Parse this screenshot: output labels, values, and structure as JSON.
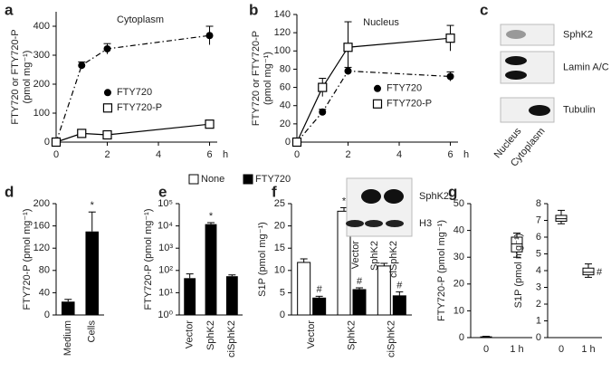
{
  "chart_data": [
    {
      "panel": "a",
      "type": "line",
      "title": "Cytoplasm",
      "ylabel": [
        "FTY720 or FTY720-P",
        "(pmol mg⁻¹)"
      ],
      "xlabel": "h",
      "x": [
        0,
        1,
        2,
        6
      ],
      "xlim": [
        0,
        6.3
      ],
      "xticks": [
        0,
        2,
        4,
        6
      ],
      "ylim": [
        0,
        450
      ],
      "yticks": [
        0,
        100,
        200,
        300,
        400
      ],
      "legend": "center",
      "series": [
        {
          "name": "FTY720",
          "color": "#000000",
          "style": "dashdot",
          "marker": "circle-filled",
          "values": [
            0,
            265,
            322,
            368
          ],
          "errors": [
            null,
            12,
            18,
            32
          ]
        },
        {
          "name": "FTY720-P",
          "color": "#000000",
          "style": "solid",
          "marker": "square-open",
          "values": [
            0,
            30,
            25,
            62
          ],
          "errors": [
            null,
            5,
            4,
            6
          ]
        }
      ]
    },
    {
      "panel": "b",
      "type": "line",
      "title": "Nucleus",
      "ylabel": [
        "FTY720 or FTY720-P",
        "(pmol mg⁻¹)"
      ],
      "xlabel": "h",
      "x": [
        0,
        1,
        2,
        6
      ],
      "xlim": [
        0,
        6.3
      ],
      "xticks": [
        0,
        2,
        4,
        6
      ],
      "ylim": [
        0,
        140
      ],
      "yticks": [
        0,
        20,
        40,
        60,
        80,
        100,
        120,
        140
      ],
      "legend": "center-right",
      "series": [
        {
          "name": "FTY720",
          "color": "#000000",
          "style": "dashdot",
          "marker": "circle-filled",
          "values": [
            0,
            33,
            78,
            72
          ],
          "errors": [
            null,
            3,
            4,
            5
          ]
        },
        {
          "name": "FTY720-P",
          "color": "#000000",
          "style": "solid",
          "marker": "square-open",
          "values": [
            0,
            60,
            104,
            114
          ],
          "errors": [
            null,
            10,
            28,
            14
          ]
        }
      ]
    },
    {
      "panel": "c",
      "type": "blot",
      "rows": [
        "SphK2",
        "Lamin A/C",
        "Tubulin"
      ],
      "lanes": [
        "Nucleus",
        "Cytoplasm"
      ]
    },
    {
      "panel": "d",
      "type": "bar",
      "ylabel": "FTY720-P (pmol mg⁻¹)",
      "categories": [
        "Medium",
        "Cells"
      ],
      "values": [
        24,
        150
      ],
      "errors": [
        4,
        35
      ],
      "color": "#000000",
      "ylim": [
        0,
        200
      ],
      "yticks": [
        0,
        40,
        80,
        120,
        160,
        200
      ],
      "annotations": [
        {
          "text": "*",
          "category": "Cells"
        }
      ]
    },
    {
      "panel": "e",
      "type": "bar",
      "log": true,
      "ylabel": "FTY720-P (pmol mg⁻¹)",
      "categories": [
        "Vector",
        "SphK2",
        "ciSphK2"
      ],
      "values": [
        45,
        12000,
        55
      ],
      "errors": [
        25,
        2000,
        8
      ],
      "color": "#000000",
      "ylim": [
        1,
        100000
      ],
      "yticks": [
        {
          "value": 1,
          "label": "10⁰"
        },
        {
          "value": 10,
          "label": "10¹"
        },
        {
          "value": 100,
          "label": "10²"
        },
        {
          "value": 1000,
          "label": "10³"
        },
        {
          "value": 10000,
          "label": "10⁴"
        },
        {
          "value": 100000,
          "label": "10⁵"
        }
      ],
      "annotations": [
        {
          "text": "*",
          "category": "SphK2"
        }
      ]
    },
    {
      "panel": "f",
      "type": "grouped-bar",
      "ylabel": "S1P (pmol mg⁻¹)",
      "categories": [
        "Vector",
        "SphK2",
        "ciSphK2"
      ],
      "ylim": [
        0,
        25
      ],
      "yticks": [
        0,
        5,
        10,
        15,
        20,
        25
      ],
      "legend": "top",
      "series": [
        {
          "name": "None",
          "color": "#ffffff",
          "values": [
            11.8,
            23.3,
            11
          ],
          "errors": [
            0.8,
            0.8,
            0.6
          ]
        },
        {
          "name": "FTY720",
          "color": "#000000",
          "values": [
            3.8,
            5.7,
            4.3
          ],
          "errors": [
            0.4,
            0.4,
            0.9
          ]
        }
      ],
      "annotations": [
        {
          "text": "*",
          "category": "SphK2",
          "series": "None"
        },
        {
          "text": "#",
          "category": "Vector",
          "series": "FTY720"
        },
        {
          "text": "#",
          "category": "SphK2",
          "series": "FTY720"
        },
        {
          "text": "#",
          "category": "ciSphK2",
          "series": "FTY720"
        }
      ],
      "inset": {
        "rows": [
          "SphK2",
          "H3"
        ],
        "lanes": [
          "Vector",
          "SphK2",
          "ciSphK2"
        ]
      }
    },
    {
      "panel": "g",
      "type": "box",
      "ylabel": "FTY720-P (pmol mg⁻¹)",
      "categories": [
        "0",
        "1 h"
      ],
      "ylim": [
        0,
        50
      ],
      "yticks": [
        0,
        10,
        20,
        30,
        40,
        50
      ],
      "boxes": [
        {
          "min": 0,
          "q1": 0,
          "median": 0,
          "q3": 0.3,
          "max": 0.5
        },
        {
          "min": 30,
          "q1": 32,
          "median": 35,
          "q3": 37.5,
          "max": 39
        }
      ]
    },
    {
      "type": "box",
      "ylabel": "S1P (pmol mg⁻¹)",
      "categories": [
        "0",
        "1 h"
      ],
      "ylim": [
        0,
        8
      ],
      "yticks": [
        0,
        1,
        2,
        3,
        4,
        5,
        6,
        7,
        8
      ],
      "boxes": [
        {
          "min": 6.8,
          "q1": 6.95,
          "median": 7.1,
          "q3": 7.3,
          "max": 7.6
        },
        {
          "min": 3.6,
          "q1": 3.75,
          "median": 3.9,
          "q3": 4.15,
          "max": 4.4
        }
      ],
      "annotations": [
        {
          "text": "#",
          "category": "1 h"
        }
      ]
    }
  ]
}
